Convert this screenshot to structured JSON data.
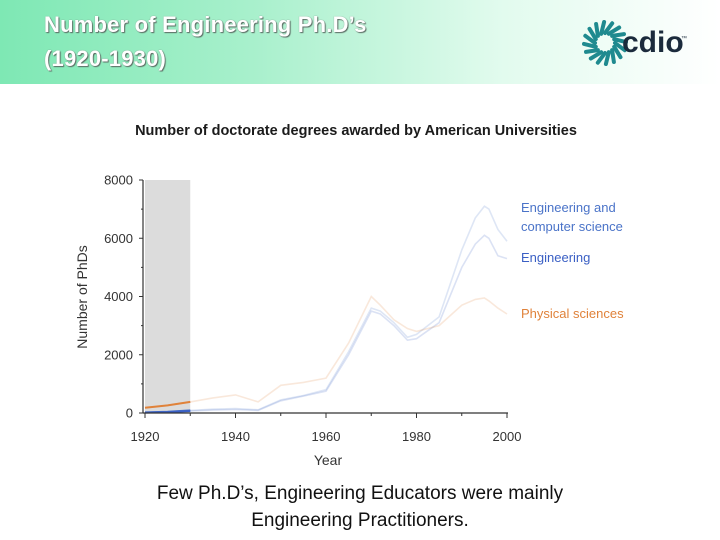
{
  "slide": {
    "title_lines": [
      "Number of Engineering Ph.D’s",
      "(1920-1930)"
    ],
    "caption_lines": [
      "Few Ph.D’s, Engineering Educators were mainly",
      "Engineering Practitioners."
    ]
  },
  "logo": {
    "text": "cdio",
    "trademark": "™",
    "icon": "cdio-swirl-logo"
  },
  "colors": {
    "engineering_cs": "#4a73c8",
    "engineering": "#3a5fc4",
    "physical_sciences": "#e0823a",
    "highlight_band": "#dcdcdc"
  },
  "chart_data": {
    "type": "line",
    "title": "Number of doctorate degrees awarded by American Universities",
    "xlabel": "Year",
    "ylabel": "Number of PhDs",
    "xlim": [
      1920,
      2000
    ],
    "ylim": [
      0,
      8000
    ],
    "x_ticks": [
      1920,
      1940,
      1960,
      1980,
      2000
    ],
    "y_ticks": [
      0,
      2000,
      4000,
      6000,
      8000
    ],
    "highlight_range": [
      1920,
      1930
    ],
    "grid": false,
    "legend": "right",
    "series": [
      {
        "name": "Engineering and computer science",
        "color": "#4a73c8",
        "points": [
          [
            1920,
            20
          ],
          [
            1925,
            40
          ],
          [
            1930,
            90
          ],
          [
            1935,
            130
          ],
          [
            1940,
            150
          ],
          [
            1945,
            110
          ],
          [
            1950,
            450
          ],
          [
            1955,
            600
          ],
          [
            1960,
            800
          ],
          [
            1965,
            2100
          ],
          [
            1970,
            3600
          ],
          [
            1972,
            3500
          ],
          [
            1975,
            3100
          ],
          [
            1978,
            2600
          ],
          [
            1980,
            2700
          ],
          [
            1985,
            3300
          ],
          [
            1990,
            5600
          ],
          [
            1993,
            6700
          ],
          [
            1995,
            7100
          ],
          [
            1996,
            7000
          ],
          [
            1998,
            6300
          ],
          [
            2000,
            5900
          ]
        ]
      },
      {
        "name": "Engineering",
        "color": "#3a5fc4",
        "points": [
          [
            1920,
            15
          ],
          [
            1925,
            30
          ],
          [
            1930,
            70
          ],
          [
            1935,
            100
          ],
          [
            1940,
            120
          ],
          [
            1945,
            90
          ],
          [
            1950,
            420
          ],
          [
            1955,
            580
          ],
          [
            1960,
            750
          ],
          [
            1965,
            2000
          ],
          [
            1970,
            3500
          ],
          [
            1972,
            3400
          ],
          [
            1975,
            3000
          ],
          [
            1978,
            2500
          ],
          [
            1980,
            2550
          ],
          [
            1985,
            3100
          ],
          [
            1990,
            5000
          ],
          [
            1993,
            5800
          ],
          [
            1995,
            6100
          ],
          [
            1996,
            6000
          ],
          [
            1998,
            5400
          ],
          [
            2000,
            5300
          ]
        ]
      },
      {
        "name": "Physical sciences",
        "color": "#e0823a",
        "points": [
          [
            1920,
            180
          ],
          [
            1925,
            260
          ],
          [
            1930,
            380
          ],
          [
            1935,
            520
          ],
          [
            1940,
            620
          ],
          [
            1945,
            380
          ],
          [
            1950,
            950
          ],
          [
            1955,
            1050
          ],
          [
            1960,
            1200
          ],
          [
            1965,
            2400
          ],
          [
            1970,
            4000
          ],
          [
            1972,
            3700
          ],
          [
            1975,
            3200
          ],
          [
            1978,
            2900
          ],
          [
            1980,
            2800
          ],
          [
            1985,
            3000
          ],
          [
            1990,
            3700
          ],
          [
            1993,
            3900
          ],
          [
            1995,
            3950
          ],
          [
            1996,
            3850
          ],
          [
            1998,
            3600
          ],
          [
            2000,
            3400
          ]
        ]
      }
    ]
  }
}
